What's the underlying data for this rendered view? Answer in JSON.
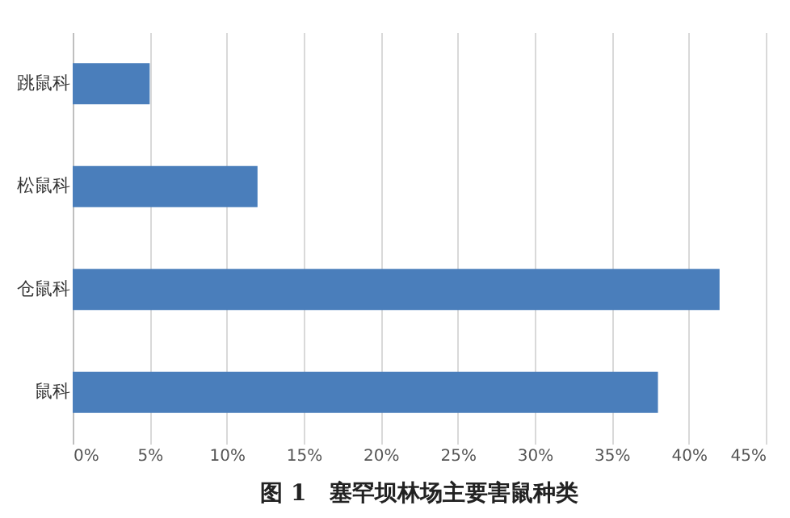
{
  "chart_data": {
    "type": "bar",
    "orientation": "horizontal",
    "title": "图 1　塞罕坝林场主要害鼠种类",
    "categories": [
      "跳鼠科",
      "松鼠科",
      "仓鼠科",
      "鼠科"
    ],
    "values": [
      5,
      12,
      42,
      38
    ],
    "color": "#4a7ebb",
    "xlim": [
      0,
      45
    ],
    "xticks": [
      {
        "value": 0,
        "label": "0%"
      },
      {
        "value": 5,
        "label": "5%"
      },
      {
        "value": 10,
        "label": "10%"
      },
      {
        "value": 15,
        "label": "15%"
      },
      {
        "value": 20,
        "label": "20%"
      },
      {
        "value": 25,
        "label": "25%"
      },
      {
        "value": 30,
        "label": "30%"
      },
      {
        "value": 35,
        "label": "35%"
      },
      {
        "value": 40,
        "label": "40%"
      },
      {
        "value": 45,
        "label": "45%"
      }
    ],
    "grid": "x"
  }
}
